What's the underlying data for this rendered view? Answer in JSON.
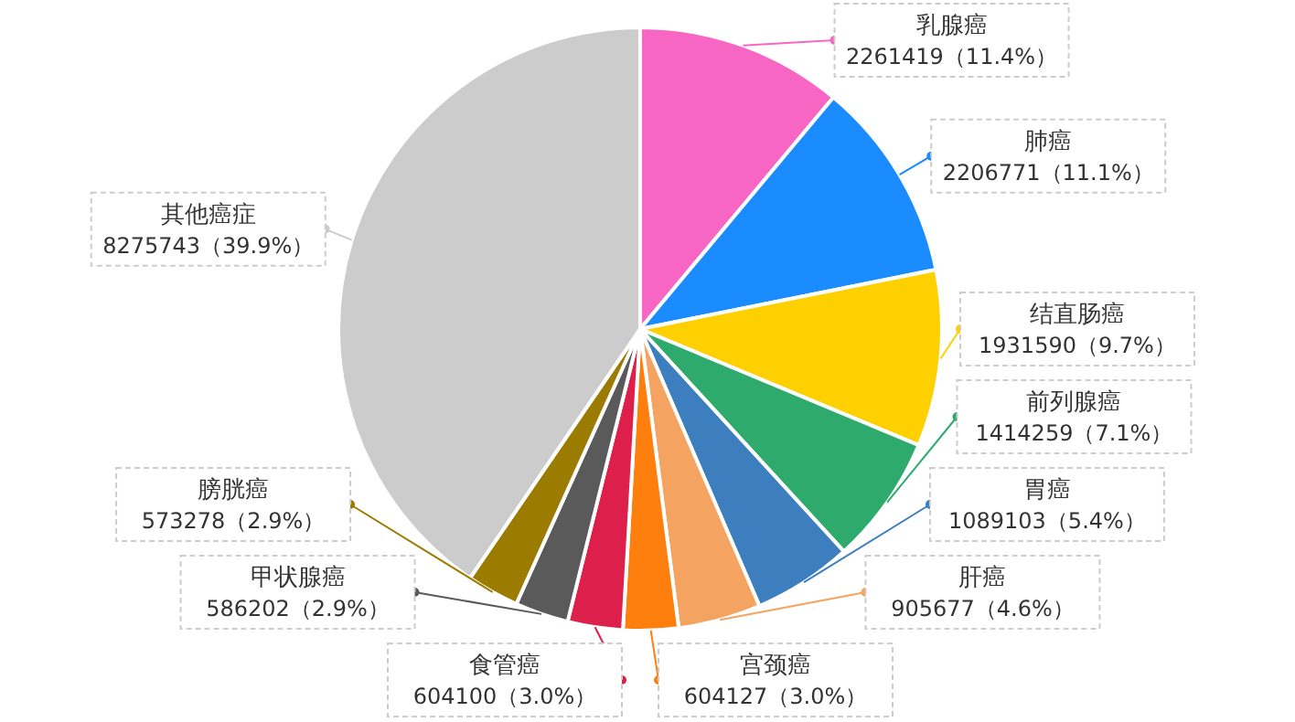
{
  "chart_data": {
    "type": "pie",
    "categories": [
      "乳腺癌",
      "肺癌",
      "结直肠癌",
      "前列腺癌",
      "胃癌",
      "肝癌",
      "宫颈癌",
      "食管癌",
      "甲状腺癌",
      "膀胱癌",
      "其他癌症"
    ],
    "values": [
      2261419,
      2206771,
      1931590,
      1414259,
      1089103,
      905677,
      604127,
      604100,
      586202,
      573278,
      8275743
    ],
    "colors": [
      "#f766c2",
      "#1a8cff",
      "#ffd000",
      "#2eaa6c",
      "#3d7ebf",
      "#f4a460",
      "#ff7f0e",
      "#dc1f4b",
      "#5a5a5a",
      "#9c7c00",
      "#cccccc"
    ],
    "value_labels": [
      "2261419（11.4%）",
      "2206771（11.1%）",
      "1931590（9.7%）",
      "1414259（7.1%）",
      "1089103（5.4%）",
      "905677（4.6%）",
      "604127（3.0%）",
      "604100（3.0%）",
      "586202（2.9%）",
      "573278（2.9%）",
      "8275743（39.9%）"
    ]
  }
}
